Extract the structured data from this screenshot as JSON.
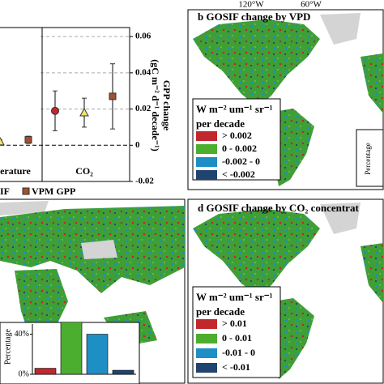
{
  "chart_data": [
    {
      "type": "errorbar",
      "categories": [
        "erature",
        "CO₂"
      ],
      "ylabel": [
        "GPP change",
        "(gC m⁻² d⁻¹ decade⁻¹)"
      ],
      "ylim": [
        -0.02,
        0.065
      ],
      "yticks": [
        -0.02,
        0,
        0.02,
        0.04,
        0.06
      ],
      "grid": true,
      "series": [
        {
          "color": "#c0282d",
          "marker": "circle",
          "values": [
            null,
            0.019
          ],
          "errors": [
            null,
            0.011
          ]
        },
        {
          "name": "IF",
          "color": "#f5e663",
          "marker": "triangle",
          "values": [
            0.002,
            0.018
          ],
          "errors": [
            0.001,
            0.008
          ]
        },
        {
          "name": "VPM GPP",
          "color": "#a0522d",
          "marker": "square",
          "values": [
            0.003,
            0.027
          ],
          "errors": [
            0.002,
            0.018
          ]
        }
      ]
    },
    {
      "type": "bar",
      "ylabel": "Percentage",
      "values": [
        6,
        52,
        40,
        4
      ],
      "colors": [
        "#c0282d",
        "#4cae2f",
        "#1e8fc4",
        "#1f4470"
      ],
      "ylim": [
        0,
        55
      ],
      "yticks": [
        {
          "value": 0,
          "label": "0%"
        },
        {
          "value": 40,
          "label": "40%"
        }
      ]
    }
  ],
  "maps": [
    {
      "title": "b  GOSIF change by VPD",
      "lon_labels": [
        "120°W",
        "60°W"
      ],
      "inset_label": "Percentage",
      "legend_title": "W m⁻² um⁻¹ sr⁻¹",
      "legend_subtitle": "per decade",
      "legend_items": [
        {
          "label": "> 0.002",
          "color": "#c0282d"
        },
        {
          "label": "0 - 0.002",
          "color": "#4cae2f"
        },
        {
          "label": "-0.002 - 0",
          "color": "#1e8fc4"
        },
        {
          "label": "< -0.002",
          "color": "#1f4470"
        }
      ]
    },
    {
      "title": "d  GOSIF change by CO₂ concentrat",
      "legend_title": "W m⁻² um⁻¹ sr⁻¹",
      "legend_subtitle": "per decade",
      "legend_items": [
        {
          "label": "> 0.01",
          "color": "#c0282d"
        },
        {
          "label": "0 - 0.01",
          "color": "#4cae2f"
        },
        {
          "label": "-0.01 - 0",
          "color": "#1e8fc4"
        },
        {
          "label": "< -0.01",
          "color": "#1f4470"
        }
      ]
    }
  ]
}
